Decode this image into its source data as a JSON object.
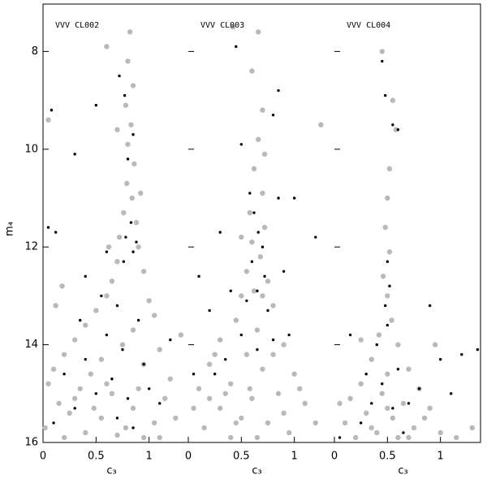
{
  "chart_data": [
    {
      "type": "scatter",
      "title": "VVV CL002",
      "xlabel": "c₃",
      "ylabel": "m₄",
      "xlim": [
        0,
        1.37
      ],
      "ylim": [
        16,
        7.03
      ],
      "xticks": [
        0,
        {
          "value": 0.5,
          "label": "0.5"
        },
        1
      ],
      "yticks": [
        8,
        10,
        12,
        14,
        16
      ],
      "series": [
        {
          "color": "#b9b9b9",
          "x": [
            0.82,
            0.8,
            0.85,
            0.78,
            0.83,
            0.8,
            0.86,
            0.79,
            0.84,
            0.76,
            0.88,
            0.72,
            0.9,
            0.7,
            0.95,
            0.65,
            0.6,
            1.0,
            0.5,
            1.05,
            0.4,
            0.85,
            0.3,
            0.75,
            1.1,
            0.2,
            0.55,
            0.95,
            0.1,
            0.45,
            1.2,
            0.05,
            0.35,
            0.65,
            1.15,
            0.15,
            0.85,
            0.25,
            0.55,
            1.05,
            0.02,
            0.4,
            0.7,
            0.95,
            1.25,
            0.6,
            0.3,
            0.9,
            0.12,
            0.05,
            0.6,
            0.7,
            0.92,
            0.62,
            0.18,
            1.3,
            0.48,
            0.78,
            0.2,
            1.1
          ],
          "values": [
            7.6,
            8.2,
            8.7,
            9.1,
            9.5,
            9.9,
            10.3,
            10.7,
            11.0,
            11.3,
            11.5,
            11.8,
            12.0,
            12.3,
            12.5,
            12.7,
            13.0,
            13.1,
            13.3,
            13.4,
            13.6,
            13.7,
            13.9,
            14.0,
            14.1,
            14.2,
            14.3,
            14.4,
            14.5,
            14.6,
            14.7,
            14.8,
            14.9,
            15.0,
            15.1,
            15.2,
            15.3,
            15.4,
            15.5,
            15.6,
            15.7,
            15.8,
            15.85,
            15.9,
            15.5,
            14.8,
            15.1,
            14.9,
            13.2,
            9.4,
            7.9,
            9.6,
            10.9,
            12.0,
            12.8,
            13.8,
            15.3,
            15.7,
            15.9,
            15.9
          ]
        },
        {
          "color": "#000000",
          "x": [
            0.08,
            0.3,
            0.5,
            0.77,
            0.72,
            0.85,
            0.8,
            0.83,
            0.78,
            0.85,
            0.76,
            0.88,
            0.05,
            0.12,
            0.4,
            0.55,
            0.7,
            0.9,
            0.6,
            0.75,
            0.4,
            0.95,
            0.2,
            0.65,
            1.0,
            0.5,
            0.8,
            0.3,
            1.1,
            0.7,
            0.1,
            0.85,
            1.2,
            0.35,
            0.6
          ],
          "values": [
            9.2,
            10.1,
            9.1,
            8.9,
            8.5,
            9.7,
            10.2,
            11.5,
            11.8,
            12.1,
            12.3,
            11.9,
            11.6,
            11.7,
            12.6,
            13.0,
            13.2,
            13.5,
            13.8,
            14.1,
            14.3,
            14.4,
            14.6,
            14.7,
            14.9,
            15.0,
            15.1,
            15.3,
            15.2,
            15.5,
            15.6,
            15.7,
            13.9,
            13.5,
            12.1
          ]
        }
      ]
    },
    {
      "type": "scatter",
      "title": "VVV CL003",
      "xlabel": "c₃",
      "xlim": [
        0,
        1.37
      ],
      "ylim": [
        16,
        7.03
      ],
      "xticks": [
        0,
        {
          "value": 0.5,
          "label": "0.5"
        },
        1
      ],
      "yticks": [
        8,
        10,
        12,
        14,
        16
      ],
      "series": [
        {
          "color": "#b9b9b9",
          "x": [
            0.42,
            0.66,
            0.6,
            0.7,
            0.66,
            0.62,
            0.7,
            0.58,
            0.72,
            0.6,
            0.68,
            0.55,
            0.75,
            0.5,
            0.8,
            0.45,
            0.65,
            0.3,
            0.9,
            0.55,
            0.2,
            0.7,
            1.0,
            0.4,
            0.1,
            0.85,
            0.6,
            0.3,
            1.1,
            0.5,
            0.75,
            0.15,
            0.95,
            0.4,
            0.65,
            1.2,
            0.05,
            0.25,
            0.58,
            0.8,
            0.35,
            0.7,
            0.62,
            0.5,
            1.25,
            0.72,
            0.9,
            0.45,
            0.2,
            1.05
          ],
          "values": [
            7.5,
            7.6,
            8.4,
            9.2,
            9.8,
            10.4,
            10.9,
            11.3,
            11.6,
            11.9,
            12.2,
            12.5,
            12.7,
            13.0,
            13.2,
            13.5,
            13.7,
            13.9,
            14.0,
            14.2,
            14.4,
            14.5,
            14.6,
            14.8,
            14.9,
            15.0,
            15.1,
            15.3,
            15.2,
            15.5,
            15.6,
            15.7,
            15.8,
            15.9,
            15.9,
            15.6,
            15.3,
            14.2,
            14.9,
            14.2,
            15.0,
            13.0,
            12.9,
            11.8,
            9.5,
            10.1,
            15.4,
            15.6,
            15.1,
            14.9
          ]
        },
        {
          "color": "#000000",
          "x": [
            0.45,
            0.85,
            0.8,
            0.5,
            0.58,
            0.62,
            0.66,
            0.7,
            0.6,
            0.72,
            0.65,
            0.55,
            0.75,
            0.9,
            0.85,
            0.3,
            0.4,
            0.2,
            0.5,
            0.8,
            0.35,
            0.25,
            0.65,
            0.05,
            1.0,
            1.2,
            0.95,
            0.1
          ],
          "values": [
            7.9,
            8.8,
            9.3,
            9.9,
            10.9,
            11.3,
            11.7,
            12.0,
            12.3,
            12.6,
            12.9,
            13.1,
            13.3,
            12.5,
            11.0,
            11.7,
            12.9,
            13.3,
            13.8,
            13.9,
            14.3,
            14.6,
            14.1,
            14.6,
            11.0,
            11.8,
            13.8,
            12.6
          ]
        }
      ]
    },
    {
      "type": "scatter",
      "title": "VVV CL004",
      "xlabel": "c₃",
      "xlim": [
        0,
        1.37
      ],
      "ylim": [
        16,
        7.03
      ],
      "xticks": [
        0,
        {
          "value": 0.5,
          "label": "0.5"
        },
        1
      ],
      "yticks": [
        8,
        10,
        12,
        14,
        16
      ],
      "series": [
        {
          "color": "#b9b9b9",
          "x": [
            0.45,
            0.55,
            0.58,
            0.52,
            0.5,
            0.48,
            0.52,
            0.46,
            0.5,
            0.54,
            0.42,
            0.6,
            0.35,
            0.7,
            0.25,
            0.5,
            0.8,
            0.15,
            0.45,
            0.65,
            0.3,
            0.9,
            0.55,
            0.1,
            0.75,
            0.4,
            1.0,
            0.2,
            0.6,
            1.3,
            0.85,
            0.05,
            0.35,
            0.7,
            1.15,
            0.5,
            0.95,
            0.25
          ],
          "values": [
            8.0,
            9.0,
            9.6,
            10.4,
            11.0,
            11.6,
            12.1,
            12.6,
            13.0,
            13.5,
            13.8,
            14.0,
            14.3,
            14.5,
            14.8,
            14.6,
            14.9,
            15.1,
            15.0,
            15.2,
            15.4,
            15.3,
            15.5,
            15.6,
            15.7,
            15.8,
            15.8,
            15.9,
            15.9,
            15.7,
            15.5,
            15.2,
            15.7,
            15.9,
            15.9,
            15.3,
            14.0,
            13.9
          ]
        },
        {
          "color": "#000000",
          "x": [
            0.45,
            0.48,
            0.55,
            0.6,
            0.5,
            0.52,
            0.48,
            0.5,
            0.4,
            0.3,
            0.45,
            0.6,
            0.35,
            0.55,
            0.25,
            0.65,
            0.8,
            1.0,
            0.15,
            1.1,
            1.2,
            0.7,
            1.35,
            0.05,
            0.9
          ],
          "values": [
            8.2,
            8.9,
            9.5,
            9.6,
            12.3,
            12.8,
            13.2,
            13.6,
            14.0,
            14.6,
            14.8,
            14.5,
            15.2,
            15.3,
            15.6,
            15.8,
            14.9,
            14.3,
            13.8,
            15.0,
            14.2,
            15.2,
            14.1,
            15.9,
            13.2
          ]
        }
      ]
    }
  ]
}
